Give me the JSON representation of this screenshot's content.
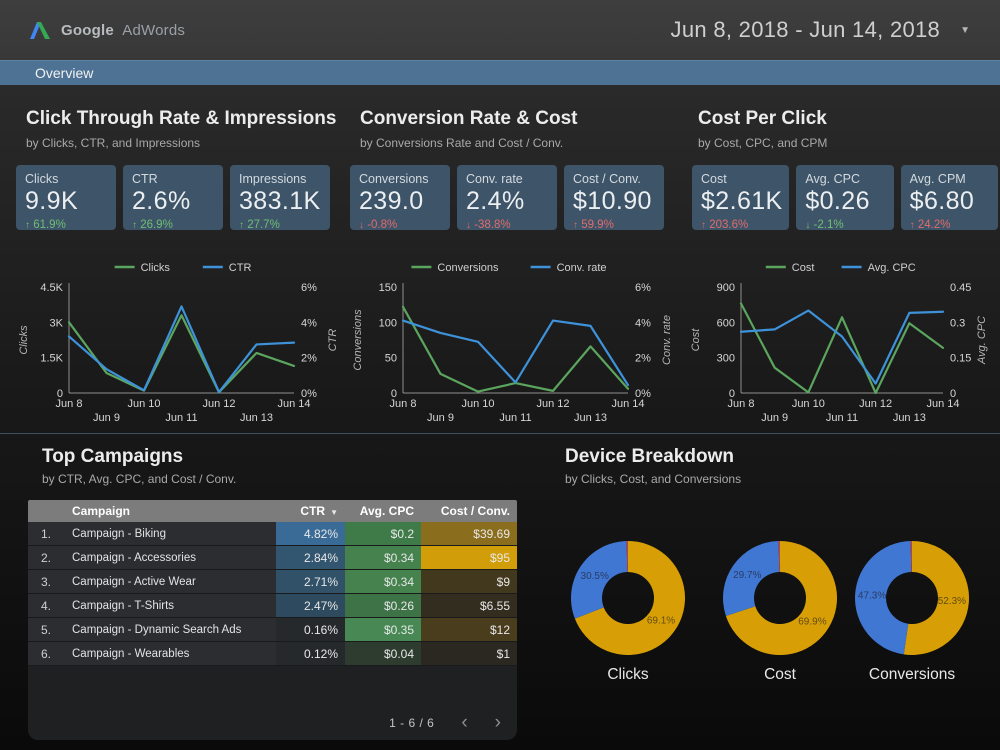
{
  "header": {
    "brand_primary": "Google",
    "brand_secondary": "AdWords",
    "date_range": "Jun 8, 2018 - Jun 14, 2018"
  },
  "nav": {
    "overview_label": "Overview"
  },
  "icons": {
    "caret_down": "▼",
    "sort_desc": "▼",
    "prev_page": "‹",
    "next_page": "›",
    "trend_up": "↑",
    "trend_down": "↓"
  },
  "colors": {
    "accent_bar": "#4d7294",
    "scorecard_bg": "#3e5468",
    "positive": "#6fbf73",
    "negative": "#e06c6c",
    "series_green": "#5ba55e",
    "series_blue": "#3e92da",
    "pie_gold": "#d79e06",
    "pie_blue": "#4077d3",
    "pie_red": "#c14343"
  },
  "sections": [
    {
      "title": "Click Through Rate & Impressions",
      "subtitle": "by Clicks, CTR, and Impressions",
      "scorecards": [
        {
          "label": "Clicks",
          "value": "9.9K",
          "delta": "61.9%",
          "direction": "up",
          "sentiment": "positive"
        },
        {
          "label": "CTR",
          "value": "2.6%",
          "delta": "26.9%",
          "direction": "up",
          "sentiment": "positive"
        },
        {
          "label": "Impressions",
          "value": "383.1K",
          "delta": "27.7%",
          "direction": "up",
          "sentiment": "positive"
        }
      ]
    },
    {
      "title": "Conversion Rate & Cost",
      "subtitle": "by Conversions Rate and Cost / Conv.",
      "scorecards": [
        {
          "label": "Conversions",
          "value": "239.0",
          "delta": "-0.8%",
          "direction": "down",
          "sentiment": "negative"
        },
        {
          "label": "Conv. rate",
          "value": "2.4%",
          "delta": "-38.8%",
          "direction": "down",
          "sentiment": "negative"
        },
        {
          "label": "Cost / Conv.",
          "value": "$10.90",
          "delta": "59.9%",
          "direction": "up",
          "sentiment": "negative"
        }
      ]
    },
    {
      "title": "Cost Per Click",
      "subtitle": "by Cost, CPC, and CPM",
      "scorecards": [
        {
          "label": "Cost",
          "value": "$2.61K",
          "delta": "203.6%",
          "direction": "up",
          "sentiment": "negative"
        },
        {
          "label": "Avg. CPC",
          "value": "$0.26",
          "delta": "-2.1%",
          "direction": "down",
          "sentiment": "positive"
        },
        {
          "label": "Avg. CPM",
          "value": "$6.80",
          "delta": "24.2%",
          "direction": "up",
          "sentiment": "negative"
        }
      ]
    }
  ],
  "chart_data": [
    {
      "type": "line",
      "title": "Clicks & CTR by day",
      "x": [
        "Jun 8",
        "Jun 9",
        "Jun 10",
        "Jun 11",
        "Jun 12",
        "Jun 13",
        "Jun 14"
      ],
      "left_axis": {
        "label": "Clicks",
        "ticks": [
          "0",
          "1.5K",
          "3K",
          "4.5K"
        ],
        "max": 4500
      },
      "right_axis": {
        "label": "CTR",
        "ticks": [
          "0%",
          "2%",
          "4%",
          "6%"
        ],
        "max": 6
      },
      "legend_position": "top",
      "series": [
        {
          "name": "Clicks",
          "axis": "left",
          "color": "#5ba55e",
          "values": [
            3000,
            850,
            100,
            3300,
            30,
            1700,
            1150
          ]
        },
        {
          "name": "CTR",
          "axis": "right",
          "color": "#3e92da",
          "values": [
            3.2,
            1.35,
            0.15,
            4.9,
            0.05,
            2.75,
            2.85
          ]
        }
      ]
    },
    {
      "type": "line",
      "title": "Conversions & Conv. rate by day",
      "x": [
        "Jun 8",
        "Jun 9",
        "Jun 10",
        "Jun 11",
        "Jun 12",
        "Jun 13",
        "Jun 14"
      ],
      "left_axis": {
        "label": "Conversions",
        "ticks": [
          "0",
          "50",
          "100",
          "150"
        ],
        "max": 150
      },
      "right_axis": {
        "label": "Conv. rate",
        "ticks": [
          "0%",
          "2%",
          "4%",
          "6%"
        ],
        "max": 6
      },
      "legend_position": "top",
      "series": [
        {
          "name": "Conversions",
          "axis": "left",
          "color": "#5ba55e",
          "values": [
            122,
            27,
            2,
            14,
            3,
            66,
            6
          ]
        },
        {
          "name": "Conv. rate",
          "axis": "right",
          "color": "#3e92da",
          "values": [
            4.1,
            3.4,
            2.9,
            0.6,
            4.1,
            3.8,
            0.45
          ]
        }
      ]
    },
    {
      "type": "line",
      "title": "Cost & Avg. CPC by day",
      "x": [
        "Jun 8",
        "Jun 9",
        "Jun 10",
        "Jun 11",
        "Jun 12",
        "Jun 13",
        "Jun 14"
      ],
      "left_axis": {
        "label": "Cost",
        "ticks": [
          "0",
          "300",
          "600",
          "900"
        ],
        "max": 900
      },
      "right_axis": {
        "label": "Avg. CPC",
        "ticks": [
          "0",
          "0.15",
          "0.3",
          "0.45"
        ],
        "max": 0.45
      },
      "legend_position": "top",
      "series": [
        {
          "name": "Cost",
          "axis": "left",
          "color": "#5ba55e",
          "values": [
            760,
            215,
            5,
            643,
            0,
            592,
            383
          ]
        },
        {
          "name": "Avg. CPC",
          "axis": "right",
          "color": "#3e92da",
          "values": [
            0.26,
            0.27,
            0.35,
            0.24,
            0.04,
            0.34,
            0.345
          ]
        }
      ]
    },
    {
      "type": "pie",
      "title": "Clicks",
      "slices": [
        {
          "value": 69.1,
          "label": "69.1%",
          "color_key": "gold"
        },
        {
          "value": 30.5,
          "label": "30.5%",
          "color_key": "blue"
        },
        {
          "value": 0.4,
          "label": "",
          "color_key": "red"
        }
      ]
    },
    {
      "type": "pie",
      "title": "Cost",
      "slices": [
        {
          "value": 69.9,
          "label": "69.9%",
          "color_key": "gold"
        },
        {
          "value": 29.7,
          "label": "29.7%",
          "color_key": "blue"
        },
        {
          "value": 0.4,
          "label": "",
          "color_key": "red"
        }
      ]
    },
    {
      "type": "pie",
      "title": "Conversions",
      "slices": [
        {
          "value": 52.3,
          "label": "52.3%",
          "color_key": "gold"
        },
        {
          "value": 47.3,
          "label": "47.3%",
          "color_key": "blue"
        },
        {
          "value": 0.4,
          "label": "",
          "color_key": "red"
        }
      ]
    }
  ],
  "top_campaigns": {
    "title": "Top Campaigns",
    "subtitle": "by CTR, Avg. CPC, and Cost / Conv.",
    "columns": [
      "Campaign",
      "CTR",
      "Avg. CPC",
      "Cost / Conv."
    ],
    "sort_column": "CTR",
    "rows": [
      {
        "num": "1.",
        "name": "Campaign - Biking",
        "ctr": "4.82%",
        "ctr_bg": "#3a6b96",
        "cpc": "$0.2",
        "cpc_bg": "#3f7a49",
        "cost": "$39.69",
        "cost_bg": "#8a6d1d"
      },
      {
        "num": "2.",
        "name": "Campaign - Accessories",
        "ctr": "2.84%",
        "ctr_bg": "#32566f",
        "cpc": "$0.34",
        "cpc_bg": "#45824e",
        "cost": "$95",
        "cost_bg": "#d19d08"
      },
      {
        "num": "3.",
        "name": "Campaign - Active Wear",
        "ctr": "2.71%",
        "ctr_bg": "#305168",
        "cpc": "$0.34",
        "cpc_bg": "#45824e",
        "cost": "$9",
        "cost_bg": "#41381e"
      },
      {
        "num": "4.",
        "name": "Campaign - T-Shirts",
        "ctr": "2.47%",
        "ctr_bg": "#2e4a5e",
        "cpc": "$0.26",
        "cpc_bg": "#3e7347",
        "cost": "$6.55",
        "cost_bg": "#332d20"
      },
      {
        "num": "5.",
        "name": "Campaign - Dynamic Search Ads",
        "ctr": "0.16%",
        "ctr_bg": "#26292c",
        "cpc": "$0.35",
        "cpc_bg": "#478855",
        "cost": "$12",
        "cost_bg": "#493d1e"
      },
      {
        "num": "6.",
        "name": "Campaign - Wearables",
        "ctr": "0.12%",
        "ctr_bg": "#26292c",
        "cpc": "$0.04",
        "cpc_bg": "#2d3c2f",
        "cost": "$1",
        "cost_bg": "#2b2822"
      }
    ],
    "pagination": "1 - 6 / 6"
  },
  "device_breakdown": {
    "title": "Device Breakdown",
    "subtitle": "by Clicks, Cost, and Conversions"
  }
}
